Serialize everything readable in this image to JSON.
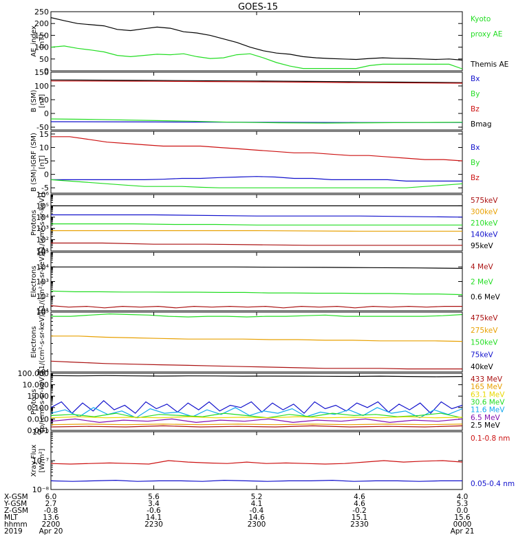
{
  "title": "GOES-15",
  "colors": {
    "black": "#000000",
    "green": "#22dd22",
    "blue": "#1010cc",
    "red": "#cc1111",
    "orange": "#e8a000",
    "yellow": "#e8d800",
    "cyan": "#10a8ee",
    "purple": "#8010b0",
    "darkred": "#aa1010"
  },
  "chart_data": [
    {
      "id": "ae",
      "type": "line",
      "ylabel": [
        "AE_index",
        "[nT]"
      ],
      "scale": "linear",
      "ylim": [
        0,
        250
      ],
      "ticks": [
        {
          "v": 0,
          "label": "0"
        },
        {
          "v": 50,
          "label": "50"
        },
        {
          "v": 100,
          "label": "100"
        },
        {
          "v": 150,
          "label": "150"
        },
        {
          "v": 200,
          "label": "200"
        },
        {
          "v": 250,
          "label": "250"
        }
      ],
      "legend": [
        {
          "text": "Kyoto",
          "color": "green"
        },
        {
          "text": "proxy AE",
          "color": "green"
        },
        {
          "text": "",
          "color": "black"
        },
        {
          "text": "Themis AE",
          "color": "black"
        }
      ],
      "series": [
        {
          "color": "black",
          "y": [
            225,
            212,
            200,
            195,
            190,
            175,
            170,
            178,
            185,
            180,
            165,
            160,
            150,
            135,
            120,
            100,
            85,
            75,
            70,
            60,
            55,
            52,
            50,
            48,
            52,
            55,
            53,
            52,
            50,
            48,
            50,
            45
          ]
        },
        {
          "color": "green",
          "y": [
            100,
            105,
            95,
            88,
            80,
            65,
            60,
            65,
            70,
            68,
            72,
            60,
            52,
            55,
            68,
            72,
            55,
            35,
            20,
            10,
            10,
            10,
            10,
            10,
            22,
            28,
            28,
            28,
            28,
            28,
            28,
            8
          ]
        }
      ]
    },
    {
      "id": "bsm",
      "type": "line",
      "ylabel": [
        "B (SM)",
        "[nT]"
      ],
      "scale": "linear",
      "ylim": [
        -60,
        150
      ],
      "ticks": [
        {
          "v": -50,
          "label": "-50"
        },
        {
          "v": 0,
          "label": "0"
        },
        {
          "v": 50,
          "label": "50"
        },
        {
          "v": 100,
          "label": "100"
        },
        {
          "v": 150,
          "label": "150"
        }
      ],
      "legend": [
        {
          "text": "Bx",
          "color": "blue"
        },
        {
          "text": "By",
          "color": "green"
        },
        {
          "text": "Bz",
          "color": "red"
        },
        {
          "text": "Bmag",
          "color": "black"
        }
      ],
      "series": [
        {
          "color": "black",
          "y": [
            122,
            120,
            118,
            115,
            112
          ]
        },
        {
          "color": "red",
          "y": [
            118,
            117,
            115,
            112,
            110
          ]
        },
        {
          "color": "blue",
          "y": [
            -30,
            -31,
            -32,
            -33,
            -33
          ]
        },
        {
          "color": "green",
          "y": [
            -20,
            -22,
            -25,
            -28,
            -32,
            -34,
            -35,
            -34,
            -33,
            -32
          ]
        }
      ]
    },
    {
      "id": "bigrf",
      "type": "line",
      "ylabel": [
        "B (SM)-IGRF (SM)",
        "[nT]"
      ],
      "scale": "linear",
      "ylim": [
        -7,
        16
      ],
      "ticks": [
        {
          "v": -5,
          "label": "-5"
        },
        {
          "v": 0,
          "label": "0"
        },
        {
          "v": 5,
          "label": "5"
        },
        {
          "v": 10,
          "label": "10"
        },
        {
          "v": 15,
          "label": "15"
        }
      ],
      "legend": [
        {
          "text": "Bx",
          "color": "blue"
        },
        {
          "text": "By",
          "color": "green"
        },
        {
          "text": "Bz",
          "color": "red"
        }
      ],
      "series": [
        {
          "color": "red",
          "y": [
            14,
            14,
            13,
            12,
            11.5,
            11,
            10.5,
            10.5,
            10.5,
            10,
            9.5,
            9,
            8.5,
            8,
            8,
            7.5,
            7,
            7,
            6.5,
            6,
            5.5,
            5.5,
            5
          ]
        },
        {
          "color": "blue",
          "y": [
            -2,
            -2,
            -2,
            -2,
            -2,
            -2,
            -1.8,
            -1.5,
            -1.5,
            -1.2,
            -1,
            -0.8,
            -1,
            -1.5,
            -1.5,
            -2,
            -2,
            -2,
            -2,
            -2.5,
            -2.5,
            -2.5,
            -2.5
          ]
        },
        {
          "color": "green",
          "y": [
            -2,
            -2.5,
            -3,
            -3.5,
            -4,
            -4.5,
            -4.5,
            -4.5,
            -4.8,
            -5,
            -5,
            -5,
            -5,
            -5,
            -5,
            -5,
            -5,
            -5,
            -5,
            -5,
            -4.5,
            -4,
            -3.5
          ]
        }
      ]
    },
    {
      "id": "pmag",
      "type": "line",
      "ylabel": [
        "Protons",
        "[1/(cm²-s-sr-keV)]"
      ],
      "scale": "log",
      "ylim": [
        1,
        6
      ],
      "ticks": [
        {
          "v": 1,
          "label": "10¹"
        },
        {
          "v": 2,
          "label": "10²"
        },
        {
          "v": 3,
          "label": "10³"
        },
        {
          "v": 4,
          "label": "10⁴"
        },
        {
          "v": 5,
          "label": "10⁵"
        },
        {
          "v": 6,
          "label": "10⁶"
        }
      ],
      "legend": [
        {
          "text": "575keV",
          "color": "darkred"
        },
        {
          "text": "300keV",
          "color": "orange"
        },
        {
          "text": "210keV",
          "color": "green"
        },
        {
          "text": "140keV",
          "color": "blue"
        },
        {
          "text": "95keV",
          "color": "black"
        }
      ],
      "series": [
        {
          "color": "black",
          "y": [
            5,
            5,
            5,
            5,
            5
          ]
        },
        {
          "color": "blue",
          "y": [
            4.2,
            4.2,
            4.1,
            4.1,
            4.0
          ]
        },
        {
          "color": "green",
          "y": [
            3.4,
            3.4,
            3.4,
            3.35,
            3.35,
            3.3,
            3.3,
            3.3,
            3.3,
            3.3,
            3.3
          ]
        },
        {
          "color": "orange",
          "y": [
            2.8,
            2.8,
            2.8,
            2.75,
            2.75
          ]
        },
        {
          "color": "darkred",
          "y": [
            1.7,
            1.7,
            1.6,
            1.6,
            1.55,
            1.5,
            1.5,
            1.5,
            1.5
          ]
        }
      ]
    },
    {
      "id": "emag",
      "type": "line",
      "ylabel": [
        "Electrons",
        "[1/(cm²-s-sr-keV)]"
      ],
      "scale": "log",
      "ylim": [
        1,
        5
      ],
      "ticks": [
        {
          "v": 1,
          "label": "10¹"
        },
        {
          "v": 2,
          "label": "10²"
        },
        {
          "v": 3,
          "label": "10³"
        },
        {
          "v": 4,
          "label": "10⁴"
        },
        {
          "v": 5,
          "label": "10⁵"
        }
      ],
      "legend": [
        {
          "text": "4 MeV",
          "color": "darkred"
        },
        {
          "text": "2 MeV",
          "color": "green"
        },
        {
          "text": "0.6 MeV",
          "color": "black"
        }
      ],
      "series": [
        {
          "color": "black",
          "y": [
            4,
            4,
            4,
            4,
            4,
            3.98,
            3.97,
            3.95,
            3.93,
            3.9
          ]
        },
        {
          "color": "green",
          "y": [
            2.35,
            2.3,
            2.3,
            2.28,
            2.28,
            2.27,
            2.27,
            2.25,
            2.25,
            2.22,
            2.22,
            2.2,
            2.2,
            2.18,
            2.18,
            2.15,
            2.15,
            2.1
          ]
        },
        {
          "color": "darkred",
          "y": [
            1.35,
            1.25,
            1.3,
            1.2,
            1.3,
            1.25,
            1.3,
            1.2,
            1.3,
            1.25,
            1.3,
            1.25,
            1.3,
            1.2,
            1.3,
            1.25,
            1.3,
            1.2,
            1.3,
            1.25,
            1.3,
            1.25,
            1.3,
            1.3
          ]
        }
      ]
    },
    {
      "id": "emaged",
      "type": "line",
      "ylabel": [
        "Electrons",
        "[1/(cm²-s-sr-keV)]"
      ],
      "scale": "log",
      "ylim": [
        4,
        5
      ],
      "ticks": [
        {
          "v": 4,
          "label": "10⁴"
        },
        {
          "v": 5,
          "label": "10⁵"
        }
      ],
      "legend": [
        {
          "text": "475keV",
          "color": "darkred"
        },
        {
          "text": "275keV",
          "color": "orange"
        },
        {
          "text": "150keV",
          "color": "green"
        },
        {
          "text": "75keV",
          "color": "blue"
        },
        {
          "text": "40keV",
          "color": "black"
        }
      ],
      "series": [
        {
          "color": "green",
          "y": [
            4.93,
            4.93,
            4.95,
            4.97,
            4.96,
            4.95,
            4.93,
            4.92,
            4.93,
            4.93,
            4.92,
            4.93,
            4.93,
            4.94,
            4.95,
            4.93,
            4.93,
            4.93,
            4.93,
            4.93,
            4.94,
            4.96
          ]
        },
        {
          "color": "orange",
          "y": [
            4.6,
            4.6,
            4.58,
            4.57,
            4.56,
            4.55,
            4.55,
            4.55,
            4.54,
            4.54,
            4.53,
            4.53,
            4.52,
            4.52,
            4.52,
            4.51
          ]
        },
        {
          "color": "darkred",
          "y": [
            4.18,
            4.16,
            4.14,
            4.13,
            4.12,
            4.11,
            4.1,
            4.09,
            4.08,
            4.07,
            4.06,
            4.06,
            4.06,
            4.05,
            4.05,
            4.05
          ]
        }
      ]
    },
    {
      "id": "peps",
      "type": "line",
      "ylabel": [
        "Protons",
        "[p/(cm²-s-sr-keV)]"
      ],
      "scale": "log",
      "ylim": [
        -3,
        2
      ],
      "ticks": [
        {
          "v": -3,
          "label": "0.001"
        },
        {
          "v": -2,
          "label": "0.010"
        },
        {
          "v": -1,
          "label": "0.100"
        },
        {
          "v": 0,
          "label": "1.000"
        },
        {
          "v": 1,
          "label": "10.000"
        },
        {
          "v": 2,
          "label": "100.000"
        }
      ],
      "legend": [
        {
          "text": "433 MeV",
          "color": "darkred"
        },
        {
          "text": "165 MeV",
          "color": "orange"
        },
        {
          "text": "63.1 MeV",
          "color": "yellow"
        },
        {
          "text": "30.6 MeV",
          "color": "green"
        },
        {
          "text": "11.6 MeV",
          "color": "cyan"
        },
        {
          "text": "6.5 MeV",
          "color": "purple"
        },
        {
          "text": "2.5 MeV",
          "color": "black"
        }
      ],
      "series": [
        {
          "color": "black",
          "y": [
            1.8,
            1.78,
            1.8,
            1.78,
            1.76,
            1.78,
            1.77,
            1.75,
            1.76,
            1.75,
            1.74,
            1.73,
            1.75,
            1.72,
            1.7,
            1.72
          ]
        },
        {
          "color": "blue",
          "y": [
            -1,
            -0.5,
            -1.5,
            -0.6,
            -1.3,
            -0.4,
            -1.2,
            -0.8,
            -1.5,
            -0.5,
            -1.1,
            -0.7,
            -1.4,
            -0.6,
            -1.2,
            -0.5,
            -1.3,
            -0.8,
            -1.0,
            -0.5,
            -1.4,
            -0.6,
            -1.2,
            -0.7,
            -1.5,
            -0.5,
            -1.1,
            -0.8,
            -1.3,
            -0.6,
            -1.0,
            -0.5,
            -1.4,
            -0.7,
            -1.2,
            -0.6,
            -1.5,
            -0.5,
            -1.1,
            -0.8
          ]
        },
        {
          "color": "cyan",
          "y": [
            -1.5,
            -1.2,
            -1.8,
            -1.0,
            -1.6,
            -1.3,
            -1.9,
            -1.1,
            -1.5,
            -1.4,
            -1.8,
            -1.2,
            -1.6,
            -1.0,
            -1.7,
            -1.3,
            -1.5,
            -1.1,
            -1.8,
            -1.4,
            -1.6,
            -1.2,
            -1.7,
            -1.0,
            -1.5,
            -1.3,
            -1.9,
            -1.2,
            -1.6,
            -1.1
          ]
        },
        {
          "color": "green",
          "y": [
            -1.7,
            -1.6,
            -1.8,
            -1.5,
            -1.9,
            -1.6,
            -1.7,
            -1.8,
            -1.5,
            -1.7,
            -1.9,
            -1.6,
            -1.8,
            -1.5,
            -1.7,
            -1.6,
            -1.8,
            -1.7,
            -1.5,
            -1.9
          ]
        },
        {
          "color": "yellow",
          "y": [
            -1.9,
            -1.8,
            -1.9,
            -1.85,
            -1.9,
            -1.8,
            -1.9,
            -1.85,
            -1.9,
            -1.8,
            -1.9,
            -1.85,
            -1.9,
            -1.8,
            -1.9,
            -1.85
          ]
        },
        {
          "color": "purple",
          "y": [
            -2.2,
            -2.0,
            -2.3,
            -2.1,
            -2.2,
            -2.0,
            -2.3,
            -2.1,
            -2.2,
            -2.0,
            -2.3,
            -2.1,
            -2.2,
            -2.0,
            -2.3,
            -2.1,
            -2.2,
            -2.0
          ]
        },
        {
          "color": "orange",
          "y": [
            -2.5,
            -2.45,
            -2.5,
            -2.45,
            -2.5,
            -2.45,
            -2.5,
            -2.45,
            -2.5,
            -2.45,
            -2.5,
            -2.45
          ]
        },
        {
          "color": "darkred",
          "y": [
            -2.7,
            -2.65,
            -2.7,
            -2.6,
            -2.7,
            -2.65,
            -2.7,
            -2.6,
            -2.7,
            -2.65,
            -2.7,
            -2.6
          ]
        }
      ]
    },
    {
      "id": "xrs",
      "type": "line",
      "ylabel": [
        "Xray Flux",
        "[W/m²]"
      ],
      "scale": "log",
      "ylim": [
        -8,
        -6
      ],
      "ticks": [
        {
          "v": -8,
          "label": "10⁻⁸"
        },
        {
          "v": -7,
          "label": "10⁻⁷"
        },
        {
          "v": -6,
          "label": "10⁻⁶"
        }
      ],
      "legend": [
        {
          "text": "0.1-0.8 nm",
          "color": "red"
        },
        {
          "text": "",
          "color": "black"
        },
        {
          "text": "",
          "color": "black"
        },
        {
          "text": "0.05-0.4 nm",
          "color": "blue"
        }
      ],
      "series": [
        {
          "color": "red",
          "y": [
            -7.1,
            -7.12,
            -7.1,
            -7.08,
            -7.1,
            -7.12,
            -7.0,
            -7.05,
            -7.08,
            -7.1,
            -7.05,
            -7.1,
            -7.08,
            -7.1,
            -7.12,
            -7.1,
            -7.05,
            -7.0,
            -7.05,
            -7.02,
            -7.0,
            -7.05
          ]
        },
        {
          "color": "blue",
          "y": [
            -7.7,
            -7.72,
            -7.7,
            -7.68,
            -7.72,
            -7.7,
            -7.7,
            -7.72,
            -7.68,
            -7.7,
            -7.72,
            -7.7,
            -7.7,
            -7.68,
            -7.72,
            -7.7,
            -7.7,
            -7.72,
            -7.7,
            -7.7
          ]
        }
      ]
    }
  ],
  "x_axis": {
    "row_labels": [
      "X-GSM",
      "Y-GSM",
      "Z-GSM",
      "MLT",
      "hhmm",
      "2019"
    ],
    "columns": [
      {
        "values": [
          "6.0",
          "2.7",
          "-0.8",
          "13.6",
          "2200",
          "Apr 20"
        ]
      },
      {
        "values": [
          "5.6",
          "3.4",
          "-0.6",
          "14.1",
          "2230",
          ""
        ]
      },
      {
        "values": [
          "5.2",
          "4.1",
          "-0.4",
          "14.6",
          "2300",
          ""
        ]
      },
      {
        "values": [
          "4.6",
          "4.6",
          "-0.2",
          "15.1",
          "2330",
          ""
        ]
      },
      {
        "values": [
          "4.0",
          "5.3",
          "0.0",
          "15.6",
          "0000",
          "Apr 21"
        ]
      }
    ]
  }
}
